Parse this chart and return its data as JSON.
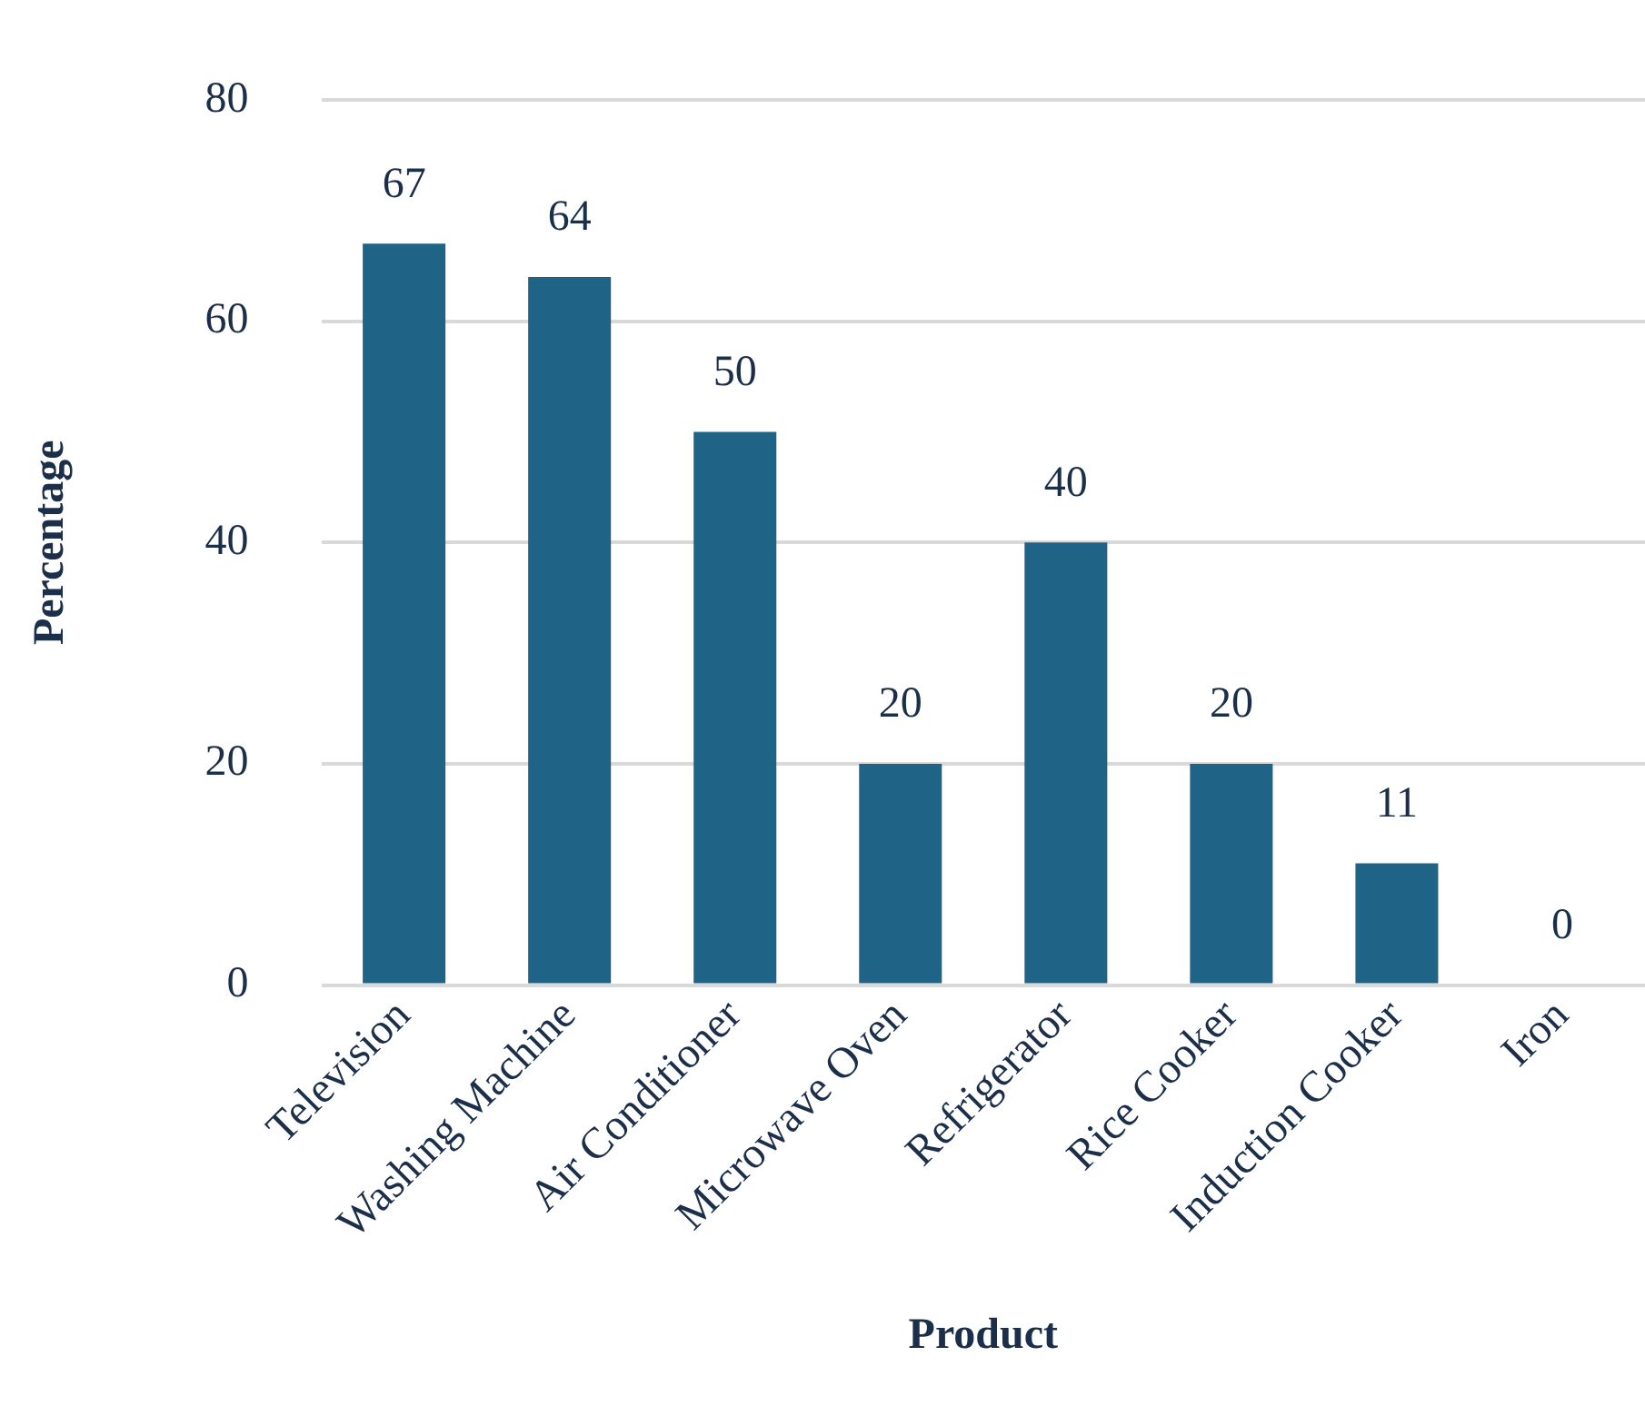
{
  "chart_data": {
    "type": "bar",
    "xlabel": "Product",
    "ylabel": "Percentage",
    "categories": [
      "Television",
      "Washing Machine",
      "Air Conditioner",
      "Microwave Oven",
      "Refrigerator",
      "Rice Cooker",
      "Induction Cooker",
      "Iron"
    ],
    "values": [
      67,
      64,
      50,
      20,
      40,
      20,
      11,
      0
    ],
    "color": "#1f6386",
    "ylim": [
      0,
      80
    ],
    "yticks": [
      0,
      20,
      40,
      60,
      80
    ],
    "grid": "y",
    "data_labels": true,
    "legend": false
  }
}
